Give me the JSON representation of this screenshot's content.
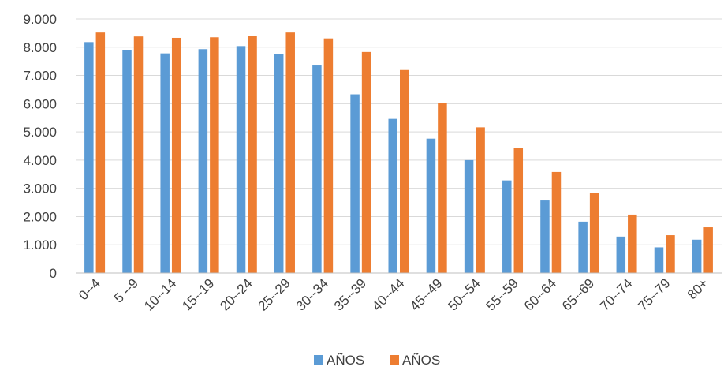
{
  "chart_data": {
    "type": "bar",
    "title": "",
    "xlabel": "",
    "ylabel": "",
    "categories": [
      "0--4",
      "5 --9",
      "10--14",
      "15--19",
      "20--24",
      "25--29",
      "30--34",
      "35--39",
      "40--44",
      "45--49",
      "50--54",
      "55--59",
      "60--64",
      "65--69",
      "70--74",
      "75--79",
      "80+"
    ],
    "series": [
      {
        "name": "AÑOS",
        "color": "#5b9bd5",
        "values": [
          8180,
          7900,
          7780,
          7930,
          8040,
          7750,
          7350,
          6330,
          5460,
          4760,
          4000,
          3280,
          2570,
          1820,
          1290,
          910,
          1180
        ]
      },
      {
        "name": "AÑOS",
        "color": "#ed7d31",
        "values": [
          8520,
          8380,
          8330,
          8350,
          8400,
          8520,
          8310,
          7830,
          7190,
          6020,
          5160,
          4420,
          3580,
          2830,
          2070,
          1340,
          1620
        ]
      }
    ],
    "ylim": [
      0,
      9000
    ],
    "yticks": [
      0,
      1000,
      2000,
      3000,
      4000,
      5000,
      6000,
      7000,
      8000,
      9000
    ],
    "ytick_labels": [
      "0",
      "1.000",
      "2.000",
      "3.000",
      "4.000",
      "5.000",
      "6.000",
      "7.000",
      "8.000",
      "9.000"
    ],
    "grid": true,
    "legend_position": "bottom"
  }
}
